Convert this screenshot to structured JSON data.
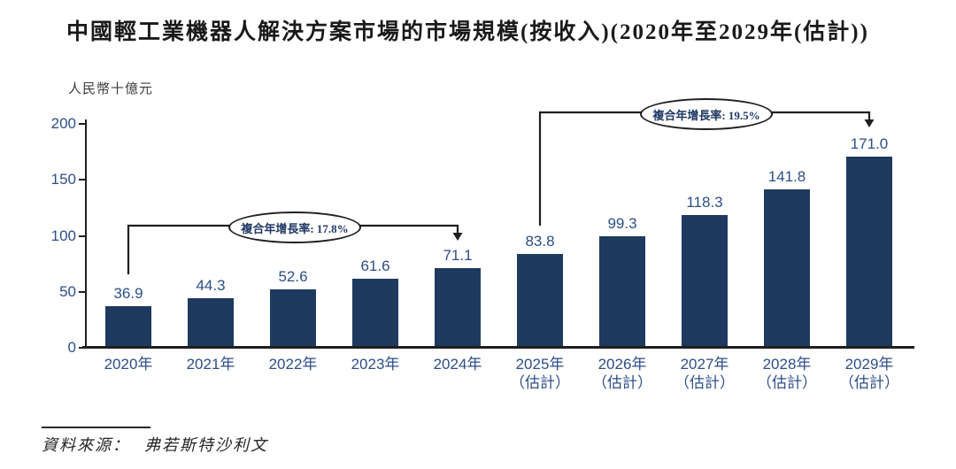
{
  "chart_data": {
    "type": "bar",
    "title": "中國輕工業機器人解決方案市場的市場規模(按收入)(2020年至2029年(估計))",
    "ylabel": "人民幣十億元",
    "ylim": [
      0,
      200
    ],
    "yticks": [
      0,
      50,
      100,
      150,
      200
    ],
    "grid": false,
    "categories": [
      "2020年",
      "2021年",
      "2022年",
      "2023年",
      "2024年",
      "2025年",
      "2026年",
      "2027年",
      "2028年",
      "2029年"
    ],
    "category_sublabels": [
      "",
      "",
      "",
      "",
      "",
      "（估計）",
      "（估計）",
      "（估計）",
      "（估計）",
      "（估計）"
    ],
    "values": [
      36.9,
      44.3,
      52.6,
      61.6,
      71.1,
      83.8,
      99.3,
      118.3,
      141.8,
      171.0
    ],
    "value_labels": [
      "36.9",
      "44.3",
      "52.6",
      "61.6",
      "71.1",
      "83.8",
      "99.3",
      "118.3",
      "141.8",
      "171.0"
    ],
    "bar_color": "#1e3a5e",
    "label_color": "#2d4e87",
    "annotations": [
      {
        "label": "複合年增長率: 17.8%",
        "from_index": 0,
        "to_index": 4
      },
      {
        "label": "複合年增長率: 19.5%",
        "from_index": 5,
        "to_index": 9
      }
    ]
  },
  "source": {
    "label": "資料來源：",
    "name": "弗若斯特沙利文"
  }
}
